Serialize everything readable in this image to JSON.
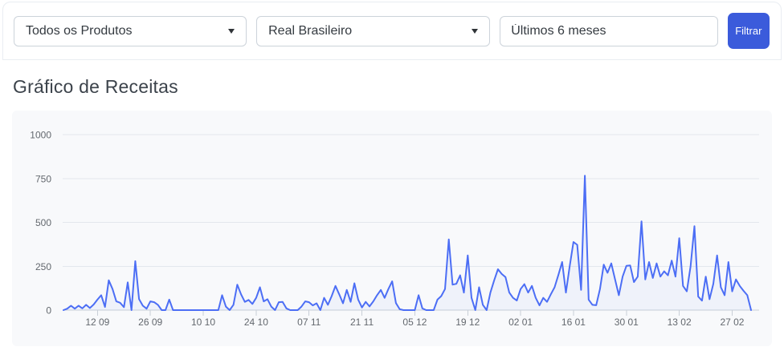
{
  "toolbar": {
    "product_filter_value": "Todos os Produtos",
    "currency_filter_value": "Real Brasileiro",
    "period_value": "Últimos 6 meses",
    "filter_button_label": "Filtrar"
  },
  "section": {
    "title": "Gráfico de Receitas"
  },
  "colors": {
    "button_blue": "#3b5bdb",
    "line_blue": "#4c6ef5",
    "panel_bg": "#f8f9fb",
    "gridline": "#e3e7ed",
    "axis_line": "#c9cfd7",
    "axis_text": "#63686e"
  },
  "chart_data": {
    "type": "line",
    "title": "Gráfico de Receitas",
    "xlabel": "",
    "ylabel": "",
    "ylim": [
      0,
      1000
    ],
    "y_ticks": [
      0,
      250,
      500,
      750,
      1000
    ],
    "x_tick_labels": [
      "12 09",
      "26 09",
      "10 10",
      "24 10",
      "07 11",
      "21 11",
      "05 12",
      "19 12",
      "02 01",
      "16 01",
      "30 01",
      "13 02",
      "27 02"
    ],
    "x_tick_indices": [
      9,
      23,
      37,
      51,
      65,
      79,
      93,
      107,
      121,
      135,
      149,
      163,
      177
    ],
    "grid": true,
    "legend": false,
    "line_color": "#4c6ef5",
    "values": [
      0,
      8,
      25,
      8,
      25,
      10,
      30,
      12,
      32,
      60,
      85,
      18,
      170,
      120,
      50,
      42,
      17,
      158,
      0,
      279,
      63,
      25,
      8,
      50,
      45,
      30,
      0,
      0,
      60,
      0,
      0,
      0,
      0,
      0,
      0,
      0,
      0,
      0,
      0,
      0,
      0,
      0,
      85,
      20,
      0,
      30,
      145,
      90,
      47,
      58,
      35,
      70,
      130,
      50,
      62,
      20,
      0,
      45,
      47,
      10,
      0,
      0,
      0,
      20,
      50,
      45,
      27,
      39,
      0,
      70,
      30,
      80,
      138,
      90,
      39,
      115,
      47,
      153,
      60,
      15,
      47,
      21,
      50,
      85,
      115,
      70,
      120,
      164,
      40,
      5,
      0,
      0,
      0,
      0,
      85,
      10,
      0,
      0,
      0,
      60,
      80,
      120,
      403,
      145,
      150,
      198,
      100,
      312,
      70,
      0,
      130,
      30,
      0,
      100,
      170,
      233,
      206,
      188,
      100,
      70,
      55,
      120,
      148,
      100,
      138,
      70,
      27,
      70,
      47,
      90,
      130,
      200,
      274,
      100,
      250,
      388,
      372,
      115,
      766,
      60,
      30,
      28,
      120,
      259,
      213,
      266,
      175,
      85,
      191,
      252,
      255,
      160,
      191,
      506,
      175,
      274,
      183,
      266,
      191,
      221,
      198,
      282,
      191,
      410,
      138,
      107,
      250,
      478,
      77,
      54,
      191,
      62,
      150,
      312,
      130,
      85,
      274,
      107,
      175,
      138,
      110,
      85,
      0
    ]
  }
}
